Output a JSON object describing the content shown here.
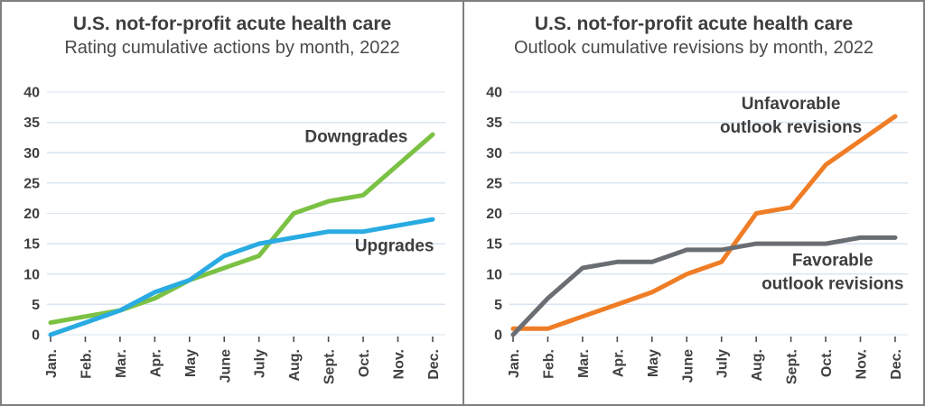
{
  "palette": {
    "title_text": "#3e3e3e",
    "subtitle_text": "#4a4a4a",
    "axis_text": "#404040",
    "gridline": "#d9e4f0",
    "tick": "#4d4d4d",
    "frame_border": "#7f7f7f",
    "green": "#7bc143",
    "blue": "#29abe2",
    "orange": "#ef7d26",
    "gray": "#6a6e73"
  },
  "chart_data": [
    {
      "type": "line",
      "title": "U.S. not-for-profit acute health care",
      "subtitle": "Rating cumulative actions by month, 2022",
      "categories": [
        "Jan.",
        "Feb.",
        "Mar.",
        "Apr.",
        "May",
        "June",
        "July",
        "Aug.",
        "Sept.",
        "Oct.",
        "Nov.",
        "Dec."
      ],
      "ylim": [
        0,
        40
      ],
      "y_step": 5,
      "grid": true,
      "legend_position": "inline-annotations",
      "series": [
        {
          "name": "Downgrades",
          "color": "green",
          "values": [
            2,
            3,
            4,
            6,
            9,
            11,
            13,
            20,
            22,
            23,
            28,
            33
          ],
          "label": {
            "lines": [
              "Downgrades"
            ],
            "month": 8.8,
            "value": 32.7
          }
        },
        {
          "name": "Upgrades",
          "color": "blue",
          "values": [
            0,
            2,
            4,
            7,
            9,
            13,
            15,
            16,
            17,
            17,
            18,
            19
          ],
          "label": {
            "lines": [
              "Upgrades"
            ],
            "month": 9.9,
            "value": 14.7
          }
        }
      ]
    },
    {
      "type": "line",
      "title": "U.S. not-for-profit acute health care",
      "subtitle": "Outlook cumulative revisions by month, 2022",
      "categories": [
        "Jan.",
        "Feb.",
        "Mar.",
        "Apr.",
        "May",
        "June",
        "July",
        "Aug.",
        "Sept.",
        "Oct.",
        "Nov.",
        "Dec."
      ],
      "ylim": [
        0,
        40
      ],
      "y_step": 5,
      "grid": true,
      "legend_position": "inline-annotations",
      "series": [
        {
          "name": "Unfavorable outlook revisions",
          "color": "orange",
          "values": [
            1,
            1,
            3,
            5,
            7,
            10,
            12,
            20,
            21,
            28,
            32,
            36
          ],
          "label": {
            "lines": [
              "Unfavorable",
              "outlook revisions"
            ],
            "month": 8.0,
            "value": 36.2
          }
        },
        {
          "name": "Favorable outlook revisions",
          "color": "gray",
          "values": [
            0,
            6,
            11,
            12,
            12,
            14,
            14,
            15,
            15,
            15,
            16,
            16
          ],
          "label": {
            "lines": [
              "Favorable",
              "outlook revisions"
            ],
            "month": 9.2,
            "value": 10.4
          }
        }
      ]
    }
  ]
}
